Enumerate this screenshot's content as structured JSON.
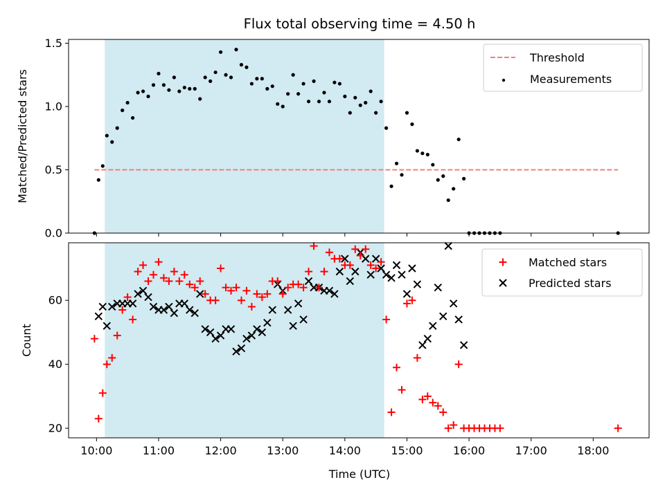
{
  "figure_title": "Flux total observing time = 4.50 h",
  "colors": {
    "threshold": "#f07f7f",
    "measurement": "#000000",
    "matched": "#ff0000",
    "predicted": "#000000",
    "observing_window": "#add8e6"
  },
  "chart_data": [
    {
      "type": "scatter",
      "title": "Flux total observing time = 4.50 h",
      "xlabel": "",
      "ylabel": "Matched/Predicted stars",
      "xlim": [
        "09:33",
        "18:54"
      ],
      "ylim": [
        0,
        1.53
      ],
      "xticks": [
        "10:00",
        "11:00",
        "12:00",
        "13:00",
        "14:00",
        "15:00",
        "16:00",
        "17:00",
        "18:00"
      ],
      "yticks": [
        "0.0",
        "0.5",
        "1.0",
        "1.5"
      ],
      "tick_values": [
        0,
        0.5,
        1.0,
        1.5
      ],
      "shaded_region": [
        "10:08",
        "14:38"
      ],
      "threshold": {
        "name": "Threshold",
        "value": 0.5,
        "x_range": [
          "09:58",
          "18:24"
        ]
      },
      "legend": "top-right",
      "legend_entries": [
        "Threshold",
        "Measurements"
      ],
      "series": [
        {
          "name": "Measurements",
          "x": [
            "09:58",
            "10:02",
            "10:06",
            "10:10",
            "10:15",
            "10:20",
            "10:25",
            "10:30",
            "10:35",
            "10:40",
            "10:45",
            "10:50",
            "10:55",
            "11:00",
            "11:05",
            "11:10",
            "11:15",
            "11:20",
            "11:25",
            "11:30",
            "11:35",
            "11:40",
            "11:45",
            "11:50",
            "11:55",
            "12:00",
            "12:05",
            "12:10",
            "12:15",
            "12:20",
            "12:25",
            "12:30",
            "12:35",
            "12:40",
            "12:45",
            "12:50",
            "12:55",
            "13:00",
            "13:05",
            "13:10",
            "13:15",
            "13:20",
            "13:25",
            "13:30",
            "13:35",
            "13:40",
            "13:45",
            "13:50",
            "13:55",
            "14:00",
            "14:05",
            "14:10",
            "14:15",
            "14:20",
            "14:25",
            "14:30",
            "14:35",
            "14:40",
            "14:45",
            "14:50",
            "14:55",
            "15:00",
            "15:05",
            "15:10",
            "15:15",
            "15:20",
            "15:25",
            "15:30",
            "15:35",
            "15:40",
            "15:45",
            "15:50",
            "15:55",
            "16:00",
            "16:05",
            "16:10",
            "16:15",
            "16:20",
            "16:25",
            "16:30",
            "18:24"
          ],
          "y": [
            0.0,
            0.42,
            0.53,
            0.77,
            0.72,
            0.83,
            0.97,
            1.03,
            0.91,
            1.11,
            1.12,
            1.08,
            1.17,
            1.26,
            1.17,
            1.13,
            1.23,
            1.12,
            1.15,
            1.14,
            1.14,
            1.06,
            1.23,
            1.2,
            1.27,
            1.43,
            1.25,
            1.23,
            1.45,
            1.33,
            1.31,
            1.18,
            1.22,
            1.22,
            1.14,
            1.16,
            1.02,
            1.0,
            1.1,
            1.25,
            1.1,
            1.18,
            1.04,
            1.2,
            1.04,
            1.11,
            1.04,
            1.19,
            1.18,
            1.08,
            0.95,
            1.07,
            1.01,
            1.03,
            1.12,
            0.95,
            1.04,
            0.83,
            0.37,
            0.55,
            0.46,
            0.95,
            0.86,
            0.65,
            0.63,
            0.62,
            0.54,
            0.42,
            0.45,
            0.26,
            0.35,
            0.74,
            0.43,
            0.0,
            0.0,
            0.0,
            0.0,
            0.0,
            0.0,
            0.0,
            0.0
          ]
        }
      ]
    },
    {
      "type": "scatter",
      "xlabel": "Time (UTC)",
      "ylabel": "Count",
      "xlim": [
        "09:33",
        "18:54"
      ],
      "ylim": [
        17,
        78
      ],
      "xticks": [
        "10:00",
        "11:00",
        "12:00",
        "13:00",
        "14:00",
        "15:00",
        "16:00",
        "17:00",
        "18:00"
      ],
      "yticks": [
        "20",
        "40",
        "60"
      ],
      "tick_values": [
        20,
        40,
        60
      ],
      "shaded_region": [
        "10:08",
        "14:38"
      ],
      "legend": "top-right",
      "legend_entries": [
        "Matched stars",
        "Predicted stars"
      ],
      "series": [
        {
          "name": "Matched stars",
          "x": [
            "09:58",
            "10:02",
            "10:06",
            "10:10",
            "10:15",
            "10:20",
            "10:25",
            "10:30",
            "10:35",
            "10:40",
            "10:45",
            "10:50",
            "10:55",
            "11:00",
            "11:05",
            "11:10",
            "11:15",
            "11:20",
            "11:25",
            "11:30",
            "11:35",
            "11:40",
            "11:45",
            "11:50",
            "11:55",
            "12:00",
            "12:05",
            "12:10",
            "12:15",
            "12:20",
            "12:25",
            "12:30",
            "12:35",
            "12:40",
            "12:45",
            "12:50",
            "12:55",
            "13:00",
            "13:05",
            "13:10",
            "13:15",
            "13:20",
            "13:25",
            "13:30",
            "13:35",
            "13:40",
            "13:45",
            "13:50",
            "13:55",
            "14:00",
            "14:05",
            "14:10",
            "14:15",
            "14:20",
            "14:25",
            "14:30",
            "14:35",
            "14:40",
            "14:45",
            "14:50",
            "14:55",
            "15:00",
            "15:05",
            "15:10",
            "15:15",
            "15:20",
            "15:25",
            "15:30",
            "15:35",
            "15:40",
            "15:45",
            "15:50",
            "15:55",
            "16:00",
            "16:05",
            "16:10",
            "16:15",
            "16:20",
            "16:25",
            "16:30",
            "18:24"
          ],
          "y": [
            48,
            23,
            31,
            40,
            42,
            49,
            57,
            61,
            54,
            69,
            71,
            66,
            68,
            72,
            67,
            66,
            69,
            66,
            68,
            65,
            64,
            66,
            62,
            60,
            60,
            70,
            64,
            63,
            64,
            60,
            63,
            58,
            62,
            61,
            62,
            66,
            66,
            62,
            64,
            65,
            65,
            64,
            69,
            77,
            64,
            69,
            75,
            73,
            73,
            71,
            71,
            76,
            74,
            76,
            71,
            70,
            72,
            54,
            25,
            39,
            32,
            59,
            60,
            42,
            29,
            30,
            28,
            27,
            25,
            20,
            21,
            40,
            20,
            20,
            20,
            20,
            20,
            20,
            20,
            20,
            20
          ]
        },
        {
          "name": "Predicted stars",
          "x": [
            "10:02",
            "10:06",
            "10:10",
            "10:15",
            "10:20",
            "10:25",
            "10:30",
            "10:35",
            "10:40",
            "10:45",
            "10:50",
            "10:55",
            "11:00",
            "11:05",
            "11:10",
            "11:15",
            "11:20",
            "11:25",
            "11:30",
            "11:35",
            "11:40",
            "11:45",
            "11:50",
            "11:55",
            "12:00",
            "12:05",
            "12:10",
            "12:15",
            "12:20",
            "12:25",
            "12:30",
            "12:35",
            "12:40",
            "12:45",
            "12:50",
            "12:55",
            "13:00",
            "13:05",
            "13:10",
            "13:15",
            "13:20",
            "13:25",
            "13:30",
            "13:35",
            "13:40",
            "13:45",
            "13:50",
            "13:55",
            "14:00",
            "14:05",
            "14:10",
            "14:15",
            "14:20",
            "14:25",
            "14:30",
            "14:35",
            "14:40",
            "14:45",
            "14:50",
            "14:55",
            "15:00",
            "15:05",
            "15:10",
            "15:15",
            "15:20",
            "15:25",
            "15:30",
            "15:35",
            "15:40",
            "15:45",
            "15:50",
            "15:55"
          ],
          "y": [
            55,
            58,
            52,
            58,
            59,
            59,
            59,
            59,
            62,
            63,
            61,
            58,
            57,
            57,
            58,
            56,
            59,
            59,
            57,
            56,
            62,
            51,
            50,
            48,
            49,
            51,
            51,
            44,
            45,
            48,
            49,
            51,
            50,
            53,
            57,
            65,
            63,
            57,
            52,
            59,
            54,
            66,
            64,
            64,
            63,
            63,
            62,
            69,
            73,
            66,
            69,
            75,
            73,
            68,
            73,
            70,
            68,
            67,
            71,
            68,
            62,
            70,
            65,
            46,
            48,
            52,
            64,
            55,
            77,
            59,
            54,
            46
          ]
        }
      ]
    }
  ]
}
